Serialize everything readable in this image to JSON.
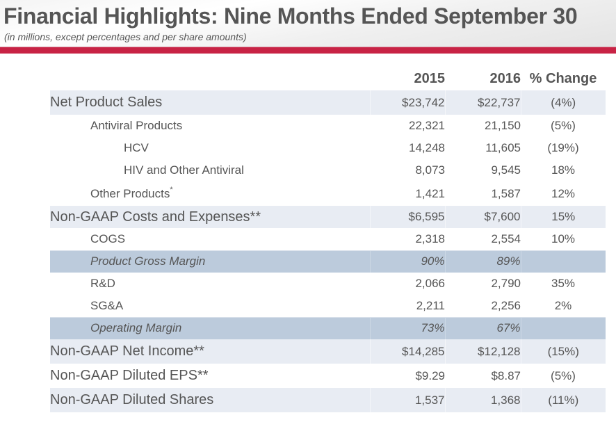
{
  "header": {
    "title": "Financial Highlights:  Nine Months Ended September 30",
    "subtitle": "(in millions, except percentages and per share amounts)",
    "accent_color": "#c82345"
  },
  "table": {
    "columns": [
      "",
      "2015",
      "2016",
      "% Change"
    ],
    "rows": [
      {
        "label": "Net Product Sales",
        "v2015": "$23,742",
        "v2016": "$22,737",
        "change": "(4%)"
      },
      {
        "label": "Antiviral Products",
        "v2015": "22,321",
        "v2016": "21,150",
        "change": "(5%)"
      },
      {
        "label": "HCV",
        "v2015": "14,248",
        "v2016": "11,605",
        "change": "(19%)"
      },
      {
        "label": "HIV and Other Antiviral",
        "v2015": "8,073",
        "v2016": "9,545",
        "change": "18%"
      },
      {
        "label": "Other Products",
        "footnote": "*",
        "v2015": "1,421",
        "v2016": "1,587",
        "change": "12%"
      },
      {
        "label": "Non-GAAP Costs and Expenses**",
        "v2015": "$6,595",
        "v2016": "$7,600",
        "change": "15%"
      },
      {
        "label": "COGS",
        "v2015": "2,318",
        "v2016": "2,554",
        "change": "10%"
      },
      {
        "label": "Product Gross Margin",
        "v2015": "90%",
        "v2016": "89%",
        "change": ""
      },
      {
        "label": "R&D",
        "v2015": "2,066",
        "v2016": "2,790",
        "change": "35%"
      },
      {
        "label": "SG&A",
        "v2015": "2,211",
        "v2016": "2,256",
        "change": "2%"
      },
      {
        "label": "Operating Margin",
        "v2015": "73%",
        "v2016": "67%",
        "change": ""
      },
      {
        "label": "Non-GAAP Net Income**",
        "v2015": "$14,285",
        "v2016": "$12,128",
        "change": "(15%)"
      },
      {
        "label": "Non-GAAP Diluted EPS**",
        "v2015": "$9.29",
        "v2016": "$8.87",
        "change": "(5%)"
      },
      {
        "label": "Non-GAAP Diluted Shares",
        "v2015": "1,537",
        "v2016": "1,368",
        "change": "(11%)"
      }
    ]
  }
}
